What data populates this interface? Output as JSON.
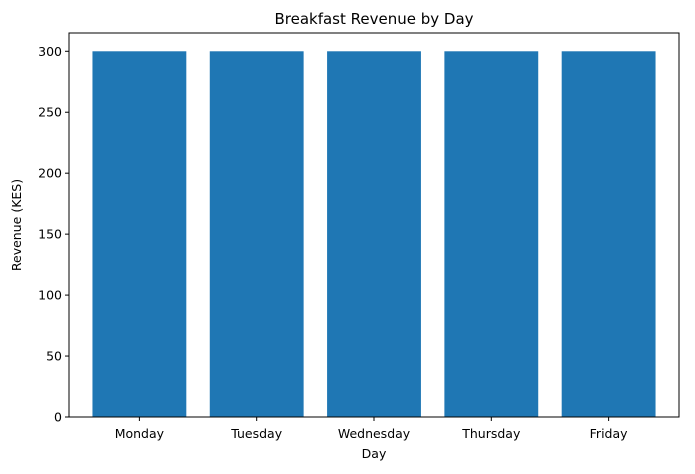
{
  "chart_data": {
    "type": "bar",
    "title": "Breakfast Revenue by Day",
    "xlabel": "Day",
    "ylabel": "Revenue (KES)",
    "categories": [
      "Monday",
      "Tuesday",
      "Wednesday",
      "Thursday",
      "Friday"
    ],
    "values": [
      300,
      300,
      300,
      300,
      300
    ],
    "ylim": [
      0,
      315
    ],
    "yticks": [
      "0",
      "50",
      "100",
      "150",
      "200",
      "250",
      "300"
    ],
    "grid": false,
    "legend": "none",
    "bar_color": "#1f77b4"
  }
}
